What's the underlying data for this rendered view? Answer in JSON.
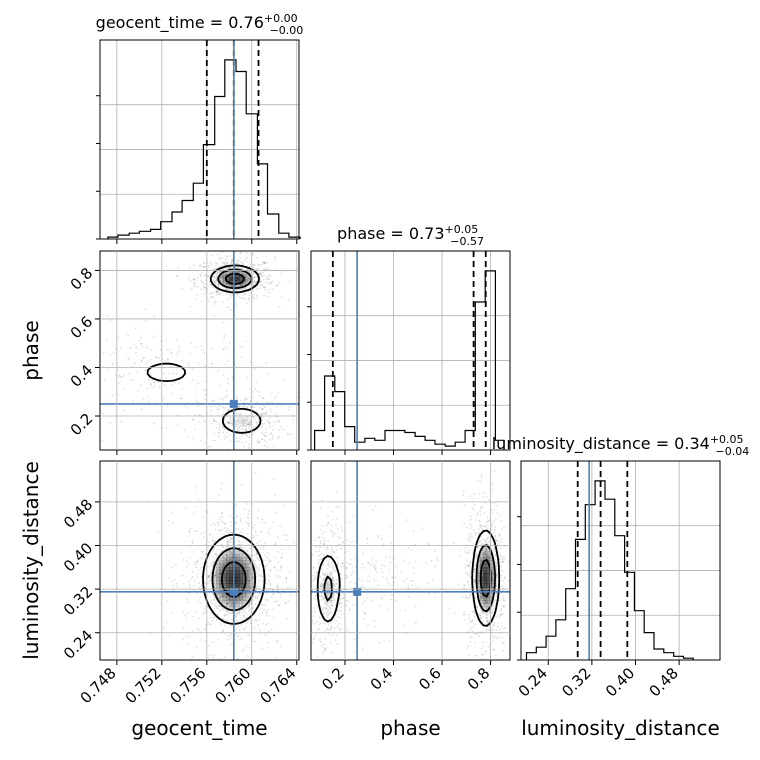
{
  "chart_data": {
    "type": "corner",
    "parameters": [
      "geocent_time",
      "phase",
      "luminosity_distance"
    ],
    "ranges": {
      "geocent_time": [
        0.7465,
        0.7642
      ],
      "phase": [
        0.06,
        0.88
      ],
      "luminosity_distance": [
        0.19,
        0.555
      ]
    },
    "ticks": {
      "geocent_time": [
        "0.748",
        "0.752",
        "0.756",
        "0.760",
        "0.764"
      ],
      "phase": [
        "0.2",
        "0.4",
        "0.6",
        "0.8"
      ],
      "luminosity_distance": [
        "0.24",
        "0.32",
        "0.40",
        "0.48"
      ]
    },
    "truths": {
      "geocent_time": 0.7584,
      "phase": 0.25,
      "luminosity_distance": 0.315
    },
    "titles": [
      {
        "param": "geocent_time",
        "prefix": "geocent_time = 0.76",
        "sup": "+0.00",
        "sub": "−0.00"
      },
      {
        "param": "phase",
        "prefix": "phase = 0.73",
        "sup": "+0.05",
        "sub": "−0.57"
      },
      {
        "param": "luminosity_distance",
        "prefix": "luminosity_distance = 0.34",
        "sup": "+0.05",
        "sub": "−0.04"
      }
    ],
    "quantiles": {
      "geocent_time": [
        0.756,
        0.7584,
        0.7606
      ],
      "phase": [
        0.15,
        0.73,
        0.78
      ],
      "luminosity_distance": [
        0.294,
        0.336,
        0.385
      ]
    },
    "histograms": {
      "geocent_time": {
        "edges": [
          0.7472,
          0.7481,
          0.7491,
          0.75,
          0.751,
          0.7519,
          0.7529,
          0.7538,
          0.7548,
          0.7557,
          0.7567,
          0.7576,
          0.7586,
          0.7595,
          0.7605,
          0.7614,
          0.7624,
          0.7633,
          0.7643
        ],
        "counts": [
          0.01,
          0.02,
          0.03,
          0.04,
          0.05,
          0.09,
          0.14,
          0.2,
          0.29,
          0.49,
          0.74,
          0.93,
          0.87,
          0.65,
          0.39,
          0.13,
          0.03,
          0.01
        ]
      },
      "phase": {
        "edges": [
          0.075,
          0.116,
          0.158,
          0.199,
          0.24,
          0.282,
          0.323,
          0.365,
          0.406,
          0.447,
          0.489,
          0.53,
          0.571,
          0.613,
          0.654,
          0.695,
          0.737,
          0.778,
          0.82,
          0.855
        ],
        "counts": [
          0.1,
          0.38,
          0.3,
          0.12,
          0.04,
          0.06,
          0.05,
          0.1,
          0.1,
          0.09,
          0.07,
          0.05,
          0.03,
          0.02,
          0.04,
          0.1,
          0.76,
          0.92,
          0.05
        ]
      },
      "luminosity_distance": {
        "edges": [
          0.2,
          0.218,
          0.236,
          0.254,
          0.272,
          0.29,
          0.308,
          0.326,
          0.344,
          0.362,
          0.38,
          0.398,
          0.416,
          0.434,
          0.452,
          0.47,
          0.488,
          0.506
        ],
        "counts": [
          0.04,
          0.07,
          0.13,
          0.22,
          0.39,
          0.66,
          0.85,
          0.98,
          0.88,
          0.68,
          0.48,
          0.27,
          0.15,
          0.06,
          0.04,
          0.02,
          0.01
        ]
      }
    },
    "densities": [
      {
        "x": "geocent_time",
        "y": "phase",
        "modes": [
          {
            "x": 0.7585,
            "y": 0.765,
            "sx": 0.0011,
            "sy": 0.028,
            "w": 1.0
          },
          {
            "x": 0.7591,
            "y": 0.18,
            "sx": 0.0012,
            "sy": 0.035,
            "w": 0.4
          },
          {
            "x": 0.7524,
            "y": 0.38,
            "sx": 0.0028,
            "sy": 0.06,
            "w": 0.18
          }
        ]
      },
      {
        "x": "geocent_time",
        "y": "luminosity_distance",
        "modes": [
          {
            "x": 0.7584,
            "y": 0.338,
            "sx": 0.0014,
            "sy": 0.042,
            "w": 1.0
          }
        ]
      },
      {
        "x": "phase",
        "y": "luminosity_distance",
        "modes": [
          {
            "x": 0.78,
            "y": 0.34,
            "sx": 0.028,
            "sy": 0.045,
            "w": 1.0
          },
          {
            "x": 0.13,
            "y": 0.32,
            "sx": 0.028,
            "sy": 0.04,
            "w": 0.45
          },
          {
            "x": 0.3,
            "y": 0.34,
            "sx": 0.09,
            "sy": 0.03,
            "w": 0.12
          }
        ]
      }
    ],
    "grid": true,
    "colors": {
      "truth": "#4a7fbc",
      "line": "#000000",
      "density": "#000000",
      "grid": "#b0b0b0"
    }
  }
}
